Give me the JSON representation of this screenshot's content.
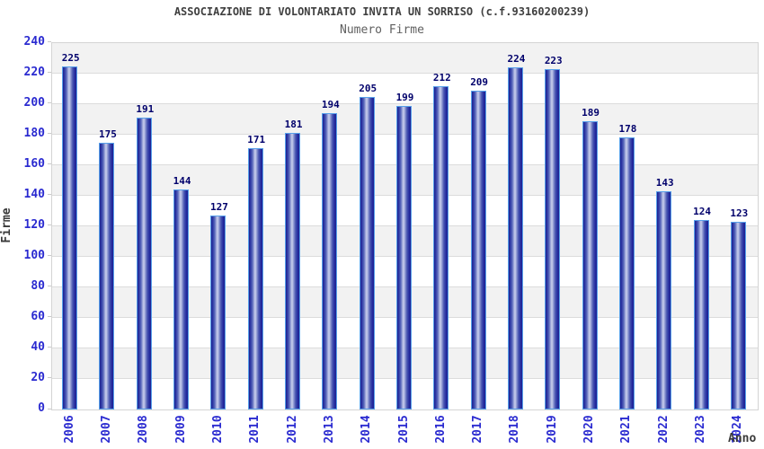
{
  "title": "ASSOCIAZIONE DI VOLONTARIATO INVITA UN SORRISO (c.f.93160200239)",
  "subtitle": "Numero Firme",
  "chart_data": {
    "type": "bar",
    "title": "ASSOCIAZIONE DI VOLONTARIATO INVITA UN SORRISO (c.f.93160200239)",
    "subtitle": "Numero Firme",
    "categories": [
      "2006",
      "2007",
      "2008",
      "2009",
      "2010",
      "2011",
      "2012",
      "2013",
      "2014",
      "2015",
      "2016",
      "2017",
      "2018",
      "2019",
      "2020",
      "2021",
      "2022",
      "2023",
      "2024"
    ],
    "values": [
      225,
      175,
      191,
      144,
      127,
      171,
      181,
      194,
      205,
      199,
      212,
      209,
      224,
      223,
      189,
      178,
      143,
      124,
      123
    ],
    "xlabel": "Anno",
    "ylabel": "Firme",
    "ylim": [
      0,
      240
    ],
    "ytick_step": 20,
    "yticks": [
      0,
      20,
      40,
      60,
      80,
      100,
      120,
      140,
      160,
      180,
      200,
      220,
      240
    ],
    "grid": true,
    "legend": false,
    "band_fill": "alternating horizontal gray/white bands, gray topmost"
  },
  "colors": {
    "bar_dark": "#1e2190",
    "bar_highlight": "#c9cfee",
    "bar_outline": "#57a0ea",
    "tick_label": "#2a2ad0",
    "value_label": "#00006b",
    "band_gray": "#f2f2f2",
    "grid_line": "#dcdcdc",
    "title": "#404040",
    "subtitle": "#606060",
    "axis_title": "#3a3a3a"
  }
}
